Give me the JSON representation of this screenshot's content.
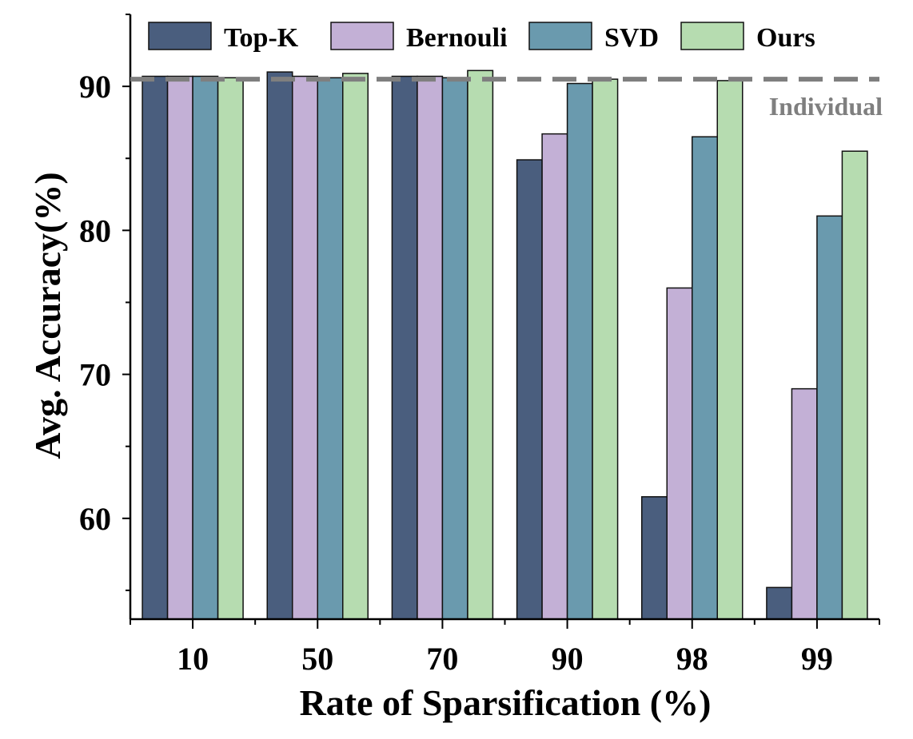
{
  "chart_data": {
    "type": "bar",
    "title": "",
    "xlabel": "Rate of Sparsification (%)",
    "ylabel": "Avg. Accuracy(%)",
    "categories": [
      "10",
      "50",
      "70",
      "90",
      "98",
      "99"
    ],
    "ylim": [
      53,
      95
    ],
    "yticks": [
      60,
      70,
      80,
      90
    ],
    "grid": false,
    "legend": "top",
    "series": [
      {
        "name": "Top-K",
        "color": "#4a5e7e",
        "values": [
          90.7,
          91.0,
          90.7,
          84.9,
          61.5,
          55.2
        ]
      },
      {
        "name": "Bernouli",
        "color": "#c3b0d6",
        "values": [
          90.7,
          90.7,
          90.7,
          86.7,
          76.0,
          69.0
        ]
      },
      {
        "name": "SVD",
        "color": "#6a9aae",
        "values": [
          90.7,
          90.6,
          90.6,
          90.2,
          86.5,
          81.0
        ]
      },
      {
        "name": "Ours",
        "color": "#b6dcb0",
        "values": [
          90.6,
          90.9,
          91.1,
          90.5,
          90.4,
          85.5
        ]
      }
    ],
    "reference_line": {
      "label": "Individual",
      "value": 90.5,
      "color": "#7f7f7f",
      "style": "dashed"
    }
  }
}
